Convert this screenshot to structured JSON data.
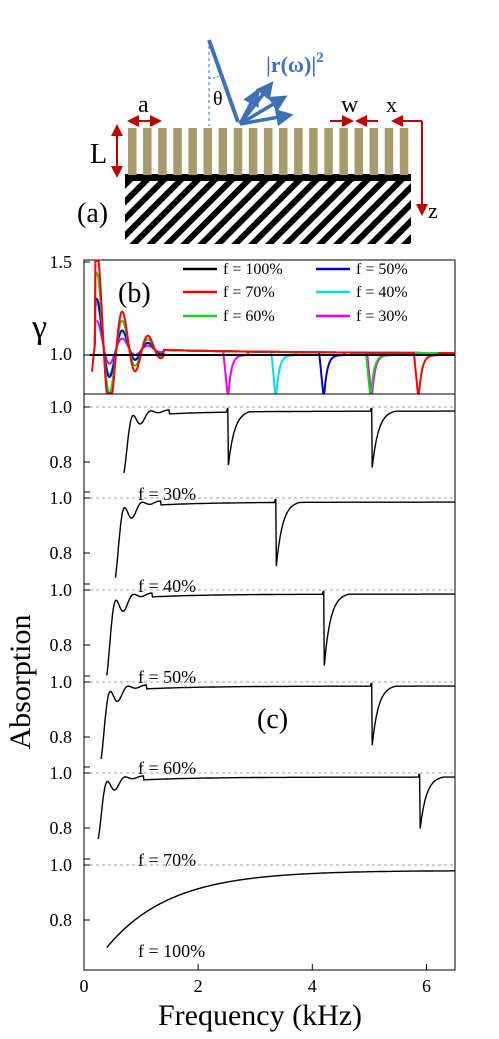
{
  "colors": {
    "bar": "#a89a6a",
    "substrate": "#000000",
    "arrow_blue": "#3f6fb5",
    "arrow_red": "#c00000",
    "guide": "#7a7ae0"
  },
  "panel_a": {
    "label": "(a)",
    "a_label": "a",
    "w_label": "w",
    "x_label": "x",
    "z_label": "z",
    "L_label": "L",
    "theta_label": "θ",
    "r_label": "|r(ω)|",
    "r_sup": "2"
  },
  "chart_data": [
    {
      "type": "line",
      "panel": "(b)",
      "ylabel": "γ",
      "ylim": [
        0.78,
        1.5
      ],
      "xlim": [
        0,
        6.5
      ],
      "yticks": [
        "1.5",
        "1.0"
      ],
      "legend_position": "top-right",
      "series": [
        {
          "name": "f = 100%",
          "color": "#000000",
          "resonance_khz": null,
          "peak": 1.0
        },
        {
          "name": "f = 70%",
          "color": "#ff0000",
          "resonance_khz": 5.86,
          "peak": 1.45
        },
        {
          "name": "f = 60%",
          "color": "#22cc22",
          "resonance_khz": 5.02,
          "peak": 1.34
        },
        {
          "name": "f = 50%",
          "color": "#0000cc",
          "resonance_khz": 4.2,
          "peak": 1.22
        },
        {
          "name": "f = 40%",
          "color": "#00e0e0",
          "resonance_khz": 3.36,
          "peak": 1.2
        },
        {
          "name": "f = 30%",
          "color": "#ee00ee",
          "resonance_khz": 2.52,
          "peak": 1.12
        }
      ]
    },
    {
      "type": "line",
      "panel": "(c)",
      "ylabel": "Absorption",
      "xlabel": "Frequency (kHz)",
      "xlim": [
        0,
        6.5
      ],
      "xticks": [
        0,
        2,
        4,
        6
      ],
      "xtick_labels": [
        "0",
        "2",
        "4",
        "6"
      ],
      "subpanels": [
        {
          "label": "f = 30%",
          "ylim": [
            0.65,
            1.03
          ],
          "yticks": [
            "1.0",
            "0.8"
          ],
          "start_khz": 0.7,
          "start_value": 0.77,
          "dips": [
            {
              "x": 2.52,
              "min": 0.77
            },
            {
              "x": 5.04,
              "min": 0.76
            }
          ]
        },
        {
          "label": "f = 40%",
          "ylim": [
            0.65,
            1.03
          ],
          "yticks": [
            "1.0",
            "0.8"
          ],
          "start_khz": 0.55,
          "start_value": 0.72,
          "dips": [
            {
              "x": 3.36,
              "min": 0.73
            }
          ]
        },
        {
          "label": "f = 50%",
          "ylim": [
            0.65,
            1.03
          ],
          "yticks": [
            "1.0",
            "0.8"
          ],
          "start_khz": 0.4,
          "start_value": 0.7,
          "dips": [
            {
              "x": 4.2,
              "min": 0.7
            }
          ]
        },
        {
          "label": "f = 60%",
          "ylim": [
            0.65,
            1.03
          ],
          "yticks": [
            "1.0",
            "0.8"
          ],
          "start_khz": 0.3,
          "start_value": 0.73,
          "dips": [
            {
              "x": 5.04,
              "min": 0.75
            }
          ]
        },
        {
          "label": "f = 70%",
          "ylim": [
            0.65,
            1.03
          ],
          "yticks": [
            "1.0",
            "0.8"
          ],
          "start_khz": 0.25,
          "start_value": 0.77,
          "dips": [
            {
              "x": 5.88,
              "min": 0.78
            }
          ]
        },
        {
          "label": "f = 100%",
          "ylim": [
            0.72,
            1.03
          ],
          "yticks": [
            "1.0",
            "0.8"
          ],
          "start_khz": 0.4,
          "start_value": 0.72,
          "dips": []
        }
      ],
      "annotation": "(c)"
    }
  ]
}
